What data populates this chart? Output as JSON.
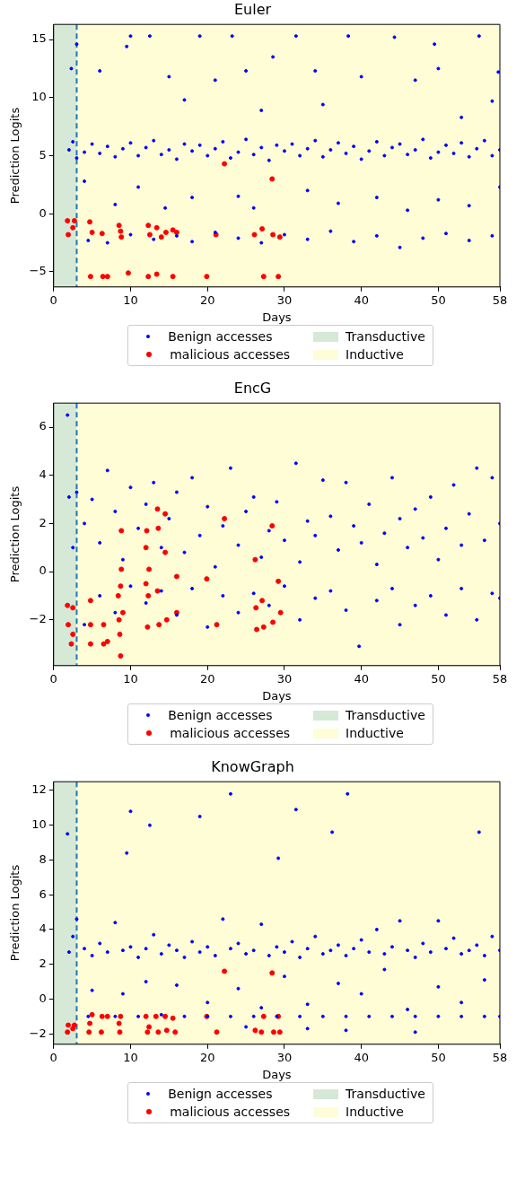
{
  "chart_data": [
    {
      "type": "scatter",
      "title": "Euler",
      "xlabel": "Days",
      "ylabel": "Prediction Logits",
      "xlim": [
        0,
        58
      ],
      "xticks": [
        0,
        10,
        20,
        30,
        40,
        50,
        58
      ],
      "ylim": [
        -6.3,
        16.3
      ],
      "yticks": [
        -5,
        0,
        5,
        10,
        15
      ],
      "grid": false,
      "legend": "bottom",
      "marker": "circle",
      "bands": [
        {
          "axis": "x",
          "from": 0,
          "to": 3,
          "label": "Transductive",
          "color": "#d5e9d6"
        },
        {
          "axis": "x",
          "from": 3,
          "to": 58,
          "label": "Inductive",
          "color": "#fefdd6"
        }
      ],
      "ref_lines": [
        {
          "axis": "x",
          "value": 3,
          "color": "#1f77b4",
          "line_style": "dashed"
        }
      ],
      "series": [
        {
          "name": "Benign accesses",
          "color": "#0000ff",
          "x": [
            2,
            2.5,
            3,
            4,
            5,
            6,
            7,
            8,
            9,
            10,
            11,
            12,
            13,
            14,
            15,
            16,
            17,
            18,
            19,
            20,
            21,
            22,
            23,
            24,
            25,
            26,
            27,
            28,
            29,
            30,
            31,
            32,
            33,
            34,
            35,
            36,
            37,
            38,
            39,
            40,
            41,
            42,
            43,
            44,
            45,
            46,
            47,
            48,
            49,
            50,
            51,
            52,
            53,
            54,
            55,
            56,
            57,
            58,
            2.3,
            3,
            6,
            9.5,
            10,
            12.5,
            15,
            19,
            21,
            23.2,
            25,
            28.5,
            31.5,
            34,
            38.3,
            40,
            44.3,
            47,
            49.5,
            50,
            55.3,
            57.8,
            17,
            27,
            35,
            53,
            57,
            4,
            8,
            11,
            14.5,
            18,
            24,
            26,
            33,
            37,
            42,
            46,
            50,
            54,
            58,
            4.5,
            7,
            10,
            13,
            16,
            18,
            21,
            24,
            27,
            30,
            33,
            36,
            39,
            42,
            45,
            48,
            51,
            54,
            57
          ],
          "values": [
            5.5,
            6.2,
            4.8,
            5.3,
            6.0,
            5.2,
            5.8,
            4.9,
            5.6,
            6.1,
            5.0,
            5.7,
            6.3,
            5.1,
            5.5,
            4.7,
            6.0,
            5.4,
            5.9,
            5.0,
            5.6,
            6.2,
            4.8,
            5.3,
            6.4,
            5.1,
            5.7,
            4.6,
            5.9,
            5.4,
            6.0,
            5.0,
            5.6,
            6.3,
            4.9,
            5.5,
            6.1,
            5.2,
            5.8,
            4.7,
            5.4,
            6.2,
            5.0,
            5.7,
            6.0,
            5.1,
            5.5,
            6.4,
            4.8,
            5.3,
            5.9,
            5.2,
            6.1,
            4.9,
            5.6,
            6.3,
            5.0,
            5.5,
            12.5,
            14.6,
            12.3,
            14.4,
            15.3,
            15.3,
            11.8,
            15.3,
            11.5,
            15.3,
            12.3,
            13.5,
            15.3,
            12.3,
            15.3,
            11.8,
            15.2,
            11.5,
            14.6,
            12.5,
            15.3,
            12.2,
            9.8,
            8.9,
            9.4,
            8.3,
            9.7,
            2.8,
            0.8,
            2.3,
            0.5,
            1.4,
            1.5,
            0.5,
            2.0,
            0.9,
            1.4,
            0.3,
            1.2,
            0.7,
            2.3,
            -2.3,
            -2.5,
            -1.8,
            -2.2,
            -1.9,
            -2.4,
            -1.6,
            -2.1,
            -2.5,
            -1.8,
            -2.2,
            -1.5,
            -2.4,
            -1.9,
            -2.9,
            -2.1,
            -1.7,
            -2.3,
            -1.9
          ]
        },
        {
          "name": "malicious accesses",
          "color": "#ff0000",
          "x": [
            1.8,
            1.9,
            2.5,
            2.7,
            4.7,
            5,
            6.3,
            8.5,
            8.7,
            8.8,
            12.3,
            12.5,
            13.4,
            14,
            14.6,
            15.5,
            16,
            21.1,
            22.2,
            26.1,
            27.1,
            28.4,
            28.5,
            29.4,
            4.8,
            6.4,
            7,
            9.7,
            12.3,
            13.4,
            15.5,
            19.9,
            27.3,
            29.2
          ],
          "values": [
            -0.6,
            -1.8,
            -1.2,
            -0.6,
            -0.7,
            -1.6,
            -1.7,
            -1.0,
            -1.5,
            -2.0,
            -1.0,
            -1.8,
            -1.2,
            -2.0,
            -1.6,
            -1.4,
            -1.6,
            -1.8,
            4.3,
            -1.8,
            -1.3,
            3.0,
            -1.8,
            -2.0,
            -5.4,
            -5.4,
            -5.4,
            -5.1,
            -5.4,
            -5.2,
            -5.4,
            -5.4,
            -5.4,
            -5.4
          ]
        }
      ]
    },
    {
      "type": "scatter",
      "title": "EncG",
      "xlabel": "Days",
      "ylabel": "Prediction Logits",
      "xlim": [
        0,
        58
      ],
      "xticks": [
        0,
        10,
        20,
        30,
        40,
        50,
        58
      ],
      "ylim": [
        -3.9,
        7
      ],
      "yticks": [
        -2,
        0,
        2,
        4,
        6
      ],
      "grid": false,
      "legend": "bottom",
      "marker": "circle",
      "bands": [
        {
          "axis": "x",
          "from": 0,
          "to": 3,
          "label": "Transductive",
          "color": "#d5e9d6"
        },
        {
          "axis": "x",
          "from": 3,
          "to": 58,
          "label": "Inductive",
          "color": "#fefdd6"
        }
      ],
      "ref_lines": [
        {
          "axis": "x",
          "value": 3,
          "color": "#1f77b4",
          "line_style": "dashed"
        }
      ],
      "series": [
        {
          "name": "Benign accesses",
          "color": "#0000ff",
          "x": [
            1.8,
            2,
            2.5,
            3,
            4,
            5,
            6,
            7,
            8,
            9,
            10,
            11,
            12,
            13,
            14,
            15,
            16,
            17,
            18,
            19,
            20,
            21,
            22,
            23,
            24,
            25,
            26,
            27,
            28,
            29,
            30,
            31.5,
            32,
            33,
            34,
            35,
            36,
            37,
            38,
            39,
            40,
            41,
            42,
            43,
            44,
            45,
            46,
            47,
            48,
            49,
            50,
            51,
            52,
            53,
            54,
            55,
            56,
            57,
            58,
            4,
            6,
            8,
            10,
            12,
            14,
            16,
            18,
            20,
            22,
            24,
            26,
            28,
            30,
            32,
            34,
            36,
            38,
            39.7,
            42,
            44,
            45,
            47,
            49,
            51,
            53,
            55,
            57,
            58
          ],
          "values": [
            6.5,
            3.1,
            1.0,
            3.3,
            2.0,
            3.0,
            1.2,
            4.2,
            2.5,
            0.5,
            3.5,
            1.8,
            2.8,
            3.7,
            1.0,
            2.2,
            3.3,
            0.8,
            3.9,
            1.5,
            2.7,
            0.2,
            1.9,
            4.3,
            1.1,
            2.5,
            3.1,
            0.6,
            1.7,
            2.9,
            1.3,
            4.5,
            0.4,
            2.1,
            1.5,
            3.8,
            2.3,
            0.9,
            3.7,
            1.9,
            1.2,
            2.8,
            0.3,
            1.6,
            3.9,
            2.2,
            1.0,
            2.6,
            1.4,
            3.1,
            0.5,
            1.8,
            3.6,
            1.1,
            2.4,
            4.3,
            1.3,
            3.9,
            2.0,
            -2.2,
            -1.0,
            -1.7,
            -0.6,
            -1.3,
            -0.8,
            -1.8,
            -0.7,
            -2.3,
            -1.0,
            -1.7,
            -0.9,
            -1.4,
            -0.6,
            -2.0,
            -1.1,
            -0.8,
            -1.6,
            -3.1,
            -1.2,
            -0.7,
            -2.2,
            -1.4,
            -1.0,
            -1.8,
            -0.7,
            -2.0,
            -0.9,
            -1.1
          ]
        },
        {
          "name": "malicious accesses",
          "color": "#ff0000",
          "x": [
            1.8,
            1.9,
            2.5,
            2.5,
            2.3,
            4.8,
            4.8,
            4.8,
            6.5,
            6.5,
            7,
            8.4,
            8.5,
            8.6,
            8.7,
            8.7,
            8.8,
            8.8,
            9,
            12,
            12,
            12.1,
            12.2,
            12.3,
            12.4,
            13.5,
            13.6,
            13.7,
            13.5,
            14.5,
            14.5,
            14.7,
            16,
            16,
            19.9,
            21.2,
            22.2,
            26.2,
            26.3,
            26.4,
            27.1,
            27.3,
            28.4,
            28.5,
            29.2,
            29.5
          ],
          "values": [
            -1.4,
            -2.2,
            -1.5,
            -2.6,
            -3.0,
            -1.2,
            -2.2,
            -3.0,
            -2.2,
            -3.0,
            -2.9,
            -1.0,
            -2.0,
            -2.6,
            -3.5,
            -0.6,
            1.7,
            0.1,
            -1.7,
            -0.5,
            1.0,
            1.7,
            -2.3,
            -1.0,
            0.1,
            2.6,
            1.8,
            -2.2,
            -0.8,
            2.4,
            0.8,
            -2.0,
            -1.7,
            -0.2,
            -0.3,
            -2.2,
            2.2,
            0.5,
            -1.5,
            -2.4,
            -1.2,
            -2.3,
            1.9,
            -2.1,
            -0.4,
            -1.7
          ]
        }
      ]
    },
    {
      "type": "scatter",
      "title": "KnowGraph",
      "xlabel": "Days",
      "ylabel": "Prediction Logits",
      "xlim": [
        0,
        58
      ],
      "xticks": [
        0,
        10,
        20,
        30,
        40,
        50,
        58
      ],
      "ylim": [
        -2.6,
        12.5
      ],
      "yticks": [
        -2,
        0,
        2,
        4,
        6,
        8,
        10,
        12
      ],
      "grid": false,
      "legend": "bottom",
      "marker": "circle",
      "bands": [
        {
          "axis": "x",
          "from": 0,
          "to": 3,
          "label": "Transductive",
          "color": "#d5e9d6"
        },
        {
          "axis": "x",
          "from": 3,
          "to": 58,
          "label": "Inductive",
          "color": "#fefdd6"
        }
      ],
      "ref_lines": [
        {
          "axis": "x",
          "value": 3,
          "color": "#1f77b4",
          "line_style": "dashed"
        }
      ],
      "series": [
        {
          "name": "Benign accesses",
          "color": "#0000ff",
          "x": [
            1.8,
            2,
            2.5,
            3,
            9.5,
            10,
            12.5,
            19,
            23,
            29.2,
            31.5,
            36.2,
            38.2,
            55.3,
            4,
            5,
            6,
            7,
            8,
            9,
            10,
            11,
            12,
            13,
            14,
            15,
            16,
            17,
            18,
            19,
            20,
            21,
            22,
            23,
            24,
            25,
            26,
            27,
            28,
            29,
            30,
            31,
            32,
            33,
            34,
            35,
            36,
            37,
            38,
            39,
            40,
            41,
            42,
            43,
            44,
            45,
            46,
            47,
            48,
            49,
            50,
            51,
            52,
            53,
            54,
            55,
            56,
            57,
            58,
            5,
            9,
            12,
            16,
            20,
            24,
            27,
            30,
            33,
            37,
            40,
            43,
            46,
            50,
            53,
            56,
            4.5,
            8,
            11,
            14,
            17,
            20,
            23,
            26,
            29,
            32,
            35,
            38,
            41,
            44,
            47,
            50,
            53,
            56,
            58,
            47,
            38,
            25,
            33
          ],
          "values": [
            9.5,
            2.7,
            3.6,
            4.6,
            8.4,
            10.8,
            10.0,
            10.5,
            11.8,
            8.1,
            10.9,
            9.6,
            11.8,
            9.6,
            2.9,
            2.5,
            3.2,
            2.7,
            4.4,
            2.8,
            3.0,
            2.4,
            2.9,
            3.7,
            2.6,
            3.1,
            2.8,
            2.4,
            3.3,
            2.7,
            3.0,
            2.5,
            4.6,
            2.9,
            3.2,
            2.6,
            2.8,
            4.3,
            2.5,
            3.0,
            2.7,
            3.3,
            2.4,
            2.9,
            3.6,
            2.6,
            2.8,
            3.1,
            2.5,
            2.9,
            3.4,
            2.7,
            4.0,
            2.6,
            3.0,
            4.5,
            2.8,
            2.4,
            3.2,
            2.7,
            4.5,
            2.9,
            3.5,
            2.6,
            2.8,
            3.1,
            2.5,
            3.6,
            2.8,
            0.5,
            0.3,
            1.0,
            0.8,
            -0.2,
            0.6,
            -0.5,
            1.3,
            -0.3,
            0.9,
            0.3,
            1.7,
            -0.6,
            0.7,
            -0.2,
            1.1,
            -1.0,
            -1.0,
            -1.0,
            -0.9,
            -1.0,
            -1.0,
            -1.0,
            -1.0,
            -1.0,
            -1.0,
            -1.0,
            -1.0,
            -1.0,
            -1.0,
            -1.0,
            -1.0,
            -1.0,
            -1.0,
            -1.0,
            -1.9,
            -1.8,
            -1.6,
            -1.7
          ]
        },
        {
          "name": "malicious accesses",
          "color": "#ff0000",
          "x": [
            1.8,
            1.9,
            2.5,
            2.7,
            4.6,
            4.7,
            5,
            6.2,
            6.3,
            7,
            8.5,
            8.6,
            8.7,
            12,
            12.2,
            12.4,
            13.3,
            13.6,
            14.5,
            14.7,
            15.5,
            15.8,
            19.9,
            21.2,
            22.2,
            26.2,
            27,
            27.3,
            28.4,
            28.6,
            29.2,
            29.4
          ],
          "values": [
            -1.9,
            -1.5,
            -1.7,
            -1.5,
            -1.9,
            -1.4,
            -0.9,
            -1.9,
            -1.0,
            -1.0,
            -1.4,
            -1.9,
            -1.0,
            -1.0,
            -1.9,
            -1.6,
            -1.0,
            -1.9,
            -1.0,
            -1.8,
            -1.1,
            -1.9,
            -1.0,
            -1.9,
            1.6,
            -1.8,
            -1.9,
            -1.0,
            1.5,
            -1.9,
            -1.0,
            -1.9
          ]
        }
      ]
    }
  ]
}
